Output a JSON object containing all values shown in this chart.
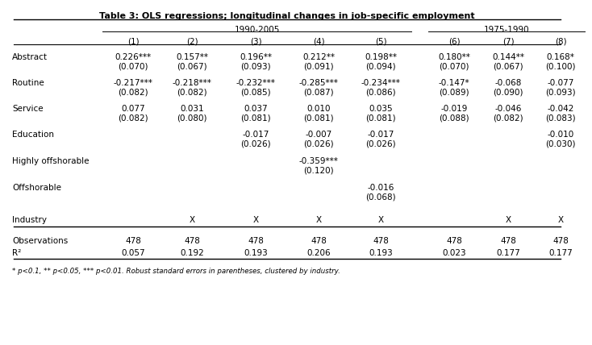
{
  "title": "Table 3: OLS regressions; longitudinal changes in job-specific employment",
  "col_headers": [
    "(1)",
    "(2)",
    "(3)",
    "(4)",
    "(5)",
    "(6)",
    "(7)",
    "(8)"
  ],
  "group1_label": "1990-2005",
  "group2_label": "1975-1990",
  "rows": [
    {
      "label": "Abstract",
      "values": [
        "0.226***",
        "0.157**",
        "0.196**",
        "0.212**",
        "0.198**",
        "0.180**",
        "0.144**",
        "0.168*"
      ],
      "se": [
        "(0.070)",
        "(0.067)",
        "(0.093)",
        "(0.091)",
        "(0.094)",
        "(0.070)",
        "(0.067)",
        "(0.100)"
      ]
    },
    {
      "label": "Routine",
      "values": [
        "-0.217***",
        "-0.218***",
        "-0.232***",
        "-0.285***",
        "-0.234***",
        "-0.147*",
        "-0.068",
        "-0.077"
      ],
      "se": [
        "(0.082)",
        "(0.082)",
        "(0.085)",
        "(0.087)",
        "(0.086)",
        "(0.089)",
        "(0.090)",
        "(0.093)"
      ]
    },
    {
      "label": "Service",
      "values": [
        "0.077",
        "0.031",
        "0.037",
        "0.010",
        "0.035",
        "-0.019",
        "-0.046",
        "-0.042"
      ],
      "se": [
        "(0.082)",
        "(0.080)",
        "(0.081)",
        "(0.081)",
        "(0.081)",
        "(0.088)",
        "(0.082)",
        "(0.083)"
      ]
    },
    {
      "label": "Education",
      "values": [
        "",
        "",
        "-0.017",
        "-0.007",
        "-0.017",
        "",
        "",
        "-0.010"
      ],
      "se": [
        "",
        "",
        "(0.026)",
        "(0.026)",
        "(0.026)",
        "",
        "",
        "(0.030)"
      ]
    },
    {
      "label": "Highly offshorable",
      "values": [
        "",
        "",
        "",
        "-0.359***",
        "",
        "",
        "",
        ""
      ],
      "se": [
        "",
        "",
        "",
        "(0.120)",
        "",
        "",
        "",
        ""
      ]
    },
    {
      "label": "Offshorable",
      "values": [
        "",
        "",
        "",
        "",
        "-0.016",
        "",
        "",
        ""
      ],
      "se": [
        "",
        "",
        "",
        "",
        "(0.068)",
        "",
        "",
        ""
      ]
    }
  ],
  "industry_row": [
    "",
    "X",
    "X",
    "X",
    "X",
    "",
    "X",
    "X"
  ],
  "obs_row": [
    "478",
    "478",
    "478",
    "478",
    "478",
    "478",
    "478",
    "478"
  ],
  "r2_row": [
    "0.057",
    "0.192",
    "0.193",
    "0.206",
    "0.193",
    "0.023",
    "0.177",
    "0.177"
  ],
  "footnote": "* p<0.1, ** p<0.05, *** p<0.01. Robust standard errors in parentheses, clustered by industry.",
  "bg_color": "#ffffff",
  "font_size": 7.5,
  "title_fontsize": 8.0
}
